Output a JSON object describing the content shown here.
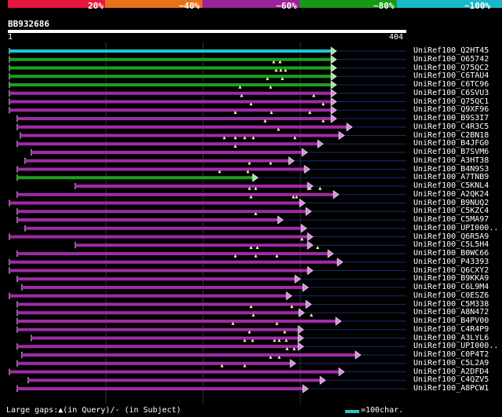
{
  "colors": {
    "bg": "#000000",
    "band_red": "#e8163c",
    "band_orange": "#e6731a",
    "band_purple": "#9b249b",
    "band_green": "#169a16",
    "band_cyan": "#19b8c8",
    "hit_cyan": "#22c4d6",
    "hit_green": "#1ea01e",
    "hit_purple": "#a02aa8",
    "arrow_fill": "#d88ae0",
    "gap_marker": "#ffffaa",
    "ruler": "#ffffff",
    "grid": "#333333",
    "thin_line": "#1a2a6a"
  },
  "legend_labels": [
    "20%",
    "~40%",
    "~60%",
    "~80%",
    "~100%"
  ],
  "query": {
    "id": "BB932686",
    "ruler_start": "1",
    "ruler_end": "404"
  },
  "footer": {
    "gaps_text": "Large gaps:▲(in Query)/- (in Subject)",
    "scale_text": "=100char."
  },
  "hits": [
    {
      "label": "UniRef100_Q2HT45",
      "color": "cyan",
      "bar": [
        12,
        422
      ],
      "gaps": [],
      "tail": 518
    },
    {
      "label": "UniRef100_O65742",
      "color": "green",
      "bar": [
        12,
        422
      ],
      "gaps": [],
      "tail": 518
    },
    {
      "label": "UniRef100_Q75QC2",
      "color": "green",
      "bar": [
        12,
        422
      ],
      "gaps": [
        349,
        357
      ],
      "tail": 518
    },
    {
      "label": "UniRef100_C6TAU4",
      "color": "green",
      "bar": [
        12,
        422
      ],
      "gaps": [
        352,
        358,
        364
      ],
      "tail": 518
    },
    {
      "label": "UniRef100_C6TC96",
      "color": "green",
      "bar": [
        12,
        422
      ],
      "gaps": [
        341,
        360
      ],
      "tail": 518
    },
    {
      "label": "UniRef100_C6SVU3",
      "color": "purple",
      "bar": [
        12,
        422
      ],
      "gaps": [
        306,
        345
      ],
      "tail": 518
    },
    {
      "label": "UniRef100_Q75QC1",
      "color": "purple",
      "bar": [
        12,
        422
      ],
      "gaps": [
        308,
        400
      ],
      "tail": 518
    },
    {
      "label": "UniRef100_Q9XF96",
      "color": "purple",
      "bar": [
        12,
        422
      ],
      "gaps": [
        320,
        412
      ],
      "tail": 518
    },
    {
      "label": "UniRef100_B9S3I7",
      "color": "purple",
      "bar": [
        22,
        422
      ],
      "gaps": [
        300,
        346,
        395
      ],
      "tail": 518
    },
    {
      "label": "UniRef100_C4R3C5",
      "color": "purple",
      "bar": [
        22,
        442
      ],
      "gaps": [
        338,
        412
      ],
      "tail": 518
    },
    {
      "label": "UniRef100_C2BN18",
      "color": "purple",
      "bar": [
        26,
        432
      ],
      "gaps": [
        355
      ],
      "tail": 518
    },
    {
      "label": "UniRef100_B4JFG0",
      "color": "purple",
      "bar": [
        22,
        405
      ],
      "gaps": [
        286,
        300,
        312,
        323,
        376
      ],
      "tail": 518
    },
    {
      "label": "UniRef100_B7SVM6",
      "color": "purple",
      "bar": [
        40,
        385
      ],
      "gaps": [
        300
      ],
      "tail": 518
    },
    {
      "label": "UniRef100_A3HT38",
      "color": "purple",
      "bar": [
        32,
        368
      ],
      "gaps": [],
      "tail": 518
    },
    {
      "label": "UniRef100_B4N9S3",
      "color": "purple",
      "bar": [
        22,
        388
      ],
      "gaps": [
        318,
        345
      ],
      "tail": 518
    },
    {
      "label": "UniRef100_A7TNB9",
      "color": "green",
      "bar": [
        22,
        322
      ],
      "gaps": [
        280,
        316
      ],
      "tail": 518
    },
    {
      "label": "UniRef100_C5KNL4",
      "color": "purple",
      "bar": [
        96,
        392
      ],
      "gaps": [],
      "tail": 518
    },
    {
      "label": "UniRef100_A2QK24",
      "color": "purple",
      "bar": [
        22,
        425
      ],
      "gaps": [
        318,
        326,
        395,
        408
      ],
      "tail": 518
    },
    {
      "label": "UniRef100_B9NUQ2",
      "color": "purple",
      "bar": [
        12,
        382
      ],
      "gaps": [
        320,
        374,
        378
      ],
      "tail": 518
    },
    {
      "label": "UniRef100_C5KZC4",
      "color": "purple",
      "bar": [
        22,
        390
      ],
      "gaps": [],
      "tail": 518
    },
    {
      "label": "UniRef100_C5MA97",
      "color": "purple",
      "bar": [
        22,
        354
      ],
      "gaps": [
        326
      ],
      "tail": 518
    },
    {
      "label": "UniRef100_UPI000..",
      "color": "purple",
      "bar": [
        32,
        384
      ],
      "gaps": [],
      "tail": 518
    },
    {
      "label": "UniRef100_Q6R5A9",
      "color": "purple",
      "bar": [
        12,
        392
      ],
      "gaps": [],
      "tail": 518
    },
    {
      "label": "UniRef100_C5L5H4",
      "color": "purple",
      "bar": [
        96,
        392
      ],
      "gaps": [
        385
      ],
      "tail": 518
    },
    {
      "label": "UniRef100_B0WC66",
      "color": "purple",
      "bar": [
        22,
        418
      ],
      "gaps": [
        320,
        328,
        405
      ],
      "tail": 518
    },
    {
      "label": "UniRef100_P43393",
      "color": "purple",
      "bar": [
        12,
        430
      ],
      "gaps": [
        300,
        326,
        353
      ],
      "tail": 518
    },
    {
      "label": "UniRef100_Q6CXY2",
      "color": "purple",
      "bar": [
        12,
        392
      ],
      "gaps": [],
      "tail": 518
    },
    {
      "label": "UniRef100_B9KKA9",
      "color": "purple",
      "bar": [
        22,
        376
      ],
      "gaps": [],
      "tail": 518
    },
    {
      "label": "UniRef100_C6L9M4",
      "color": "purple",
      "bar": [
        28,
        386
      ],
      "gaps": [],
      "tail": 518
    },
    {
      "label": "UniRef100_C0ESZ6",
      "color": "purple",
      "bar": [
        12,
        365
      ],
      "gaps": [],
      "tail": 518
    },
    {
      "label": "UniRef100_C5M338",
      "color": "purple",
      "bar": [
        22,
        390
      ],
      "gaps": [],
      "tail": 518
    },
    {
      "label": "UniRef100_A8N472",
      "color": "purple",
      "bar": [
        22,
        381
      ],
      "gaps": [
        320,
        372
      ],
      "tail": 518
    },
    {
      "label": "UniRef100_B4PV00",
      "color": "purple",
      "bar": [
        22,
        428
      ],
      "gaps": [
        323,
        397
      ],
      "tail": 518
    },
    {
      "label": "UniRef100_C4R4P9",
      "color": "purple",
      "bar": [
        22,
        380
      ],
      "gaps": [
        297,
        353
      ],
      "tail": 518
    },
    {
      "label": "UniRef100_A3LYL6",
      "color": "purple",
      "bar": [
        40,
        380
      ],
      "gaps": [
        318,
        363
      ],
      "tail": 518
    },
    {
      "label": "UniRef100_UPI000..",
      "color": "purple",
      "bar": [
        22,
        380
      ],
      "gaps": [
        312,
        322,
        350,
        356,
        365
      ],
      "tail": 518
    },
    {
      "label": "UniRef100_C0P4T2",
      "color": "purple",
      "bar": [
        28,
        453
      ],
      "gaps": [
        366,
        375
      ],
      "tail": 518
    },
    {
      "label": "UniRef100_C5L2A9",
      "color": "purple",
      "bar": [
        22,
        370
      ],
      "gaps": [
        345,
        356
      ],
      "tail": 518
    },
    {
      "label": "UniRef100_A2DFD4",
      "color": "purple",
      "bar": [
        12,
        432
      ],
      "gaps": [
        283,
        312
      ],
      "tail": 518
    },
    {
      "label": "UniRef100_C4QZV5",
      "color": "purple",
      "bar": [
        36,
        408
      ],
      "gaps": [],
      "tail": 518
    },
    {
      "label": "UniRef100_A8PCW1",
      "color": "purple",
      "bar": [
        22,
        386
      ],
      "gaps": [],
      "tail": 518
    }
  ]
}
